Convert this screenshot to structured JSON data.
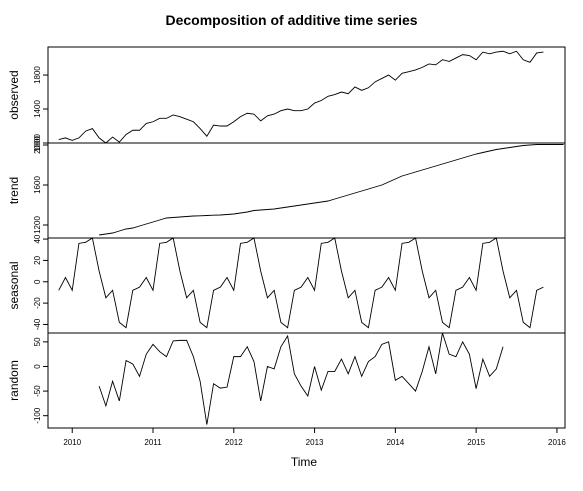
{
  "chart_data": {
    "type": "line",
    "title": "Decomposition of additive time series",
    "xlabel": "Time",
    "xlim": [
      2009.7,
      2016.1
    ],
    "x_ticks": [
      2010,
      2011,
      2012,
      2013,
      2014,
      2015,
      2016
    ],
    "x_tick_labels": [
      "2010",
      "2011",
      "2012",
      "2013",
      "2014",
      "2015",
      "2016"
    ],
    "start": 2009.833,
    "frequency": 12,
    "panels": [
      {
        "name": "observed",
        "ylabel": "observed",
        "ylim": [
          1000,
          2130
        ],
        "y_ticks": [
          1000,
          1400,
          1800
        ],
        "y_tick_labels": [
          "1000",
          "1400",
          "1800"
        ],
        "values": [
          1040,
          1060,
          1030,
          1060,
          1140,
          1170,
          1060,
          1000,
          1070,
          1010,
          1100,
          1150,
          1150,
          1230,
          1250,
          1290,
          1290,
          1330,
          1310,
          1280,
          1250,
          1170,
          1080,
          1210,
          1200,
          1200,
          1250,
          1310,
          1350,
          1340,
          1260,
          1320,
          1340,
          1380,
          1400,
          1380,
          1380,
          1400,
          1470,
          1500,
          1550,
          1570,
          1600,
          1580,
          1660,
          1620,
          1650,
          1720,
          1760,
          1800,
          1740,
          1820,
          1840,
          1860,
          1890,
          1930,
          1920,
          1980,
          1960,
          2000,
          2040,
          2030,
          1980,
          2070,
          2050,
          2070,
          2080,
          2050,
          2080,
          1980,
          1950,
          2060,
          2070
        ]
      },
      {
        "name": "trend",
        "ylabel": "trend",
        "ylim": [
          1070,
          2020
        ],
        "y_ticks": [
          1200,
          1600,
          2000
        ],
        "y_tick_labels": [
          "1200",
          "1600",
          "2000"
        ],
        "start": 2010.333,
        "values": [
          1100,
          1110,
          1120,
          1140,
          1160,
          1170,
          1190,
          1210,
          1230,
          1250,
          1270,
          1275,
          1280,
          1285,
          1290,
          1292,
          1295,
          1298,
          1300,
          1305,
          1310,
          1320,
          1330,
          1345,
          1350,
          1355,
          1360,
          1370,
          1380,
          1390,
          1400,
          1410,
          1420,
          1430,
          1440,
          1460,
          1480,
          1500,
          1520,
          1540,
          1560,
          1580,
          1600,
          1630,
          1660,
          1690,
          1710,
          1730,
          1750,
          1770,
          1790,
          1810,
          1830,
          1850,
          1870,
          1890,
          1910,
          1925,
          1940,
          1955,
          1965,
          1975,
          1985,
          1995,
          2000,
          2005,
          2005,
          2005,
          2005,
          2005
        ]
      },
      {
        "name": "seasonal",
        "ylabel": "seasonal",
        "ylim": [
          -48,
          41
        ],
        "y_ticks": [
          -40,
          -20,
          0,
          20,
          40
        ],
        "y_tick_labels": [
          "-40",
          "-20",
          "0",
          "20",
          "40"
        ],
        "values": [
          -8,
          4,
          -8,
          36,
          37,
          41,
          10,
          -15,
          -8,
          -38,
          -43,
          -8,
          -5,
          4,
          -8,
          36,
          37,
          41,
          10,
          -15,
          -8,
          -38,
          -43,
          -8,
          -5,
          4,
          -8,
          36,
          37,
          41,
          10,
          -15,
          -8,
          -38,
          -43,
          -8,
          -5,
          4,
          -8,
          36,
          37,
          41,
          10,
          -15,
          -8,
          -38,
          -43,
          -8,
          -5,
          4,
          -8,
          36,
          37,
          41,
          10,
          -15,
          -8,
          -38,
          -43,
          -8,
          -5,
          4,
          -8,
          36,
          37,
          41,
          10,
          -15,
          -8,
          -38,
          -43,
          -8,
          -5
        ]
      },
      {
        "name": "random",
        "ylabel": "random",
        "ylim": [
          -125,
          68
        ],
        "y_ticks": [
          -100,
          -50,
          0,
          50
        ],
        "y_tick_labels": [
          "-100",
          "-50",
          "0",
          "50"
        ],
        "start": 2010.333,
        "values": [
          -40,
          -80,
          -30,
          -70,
          12,
          5,
          -20,
          25,
          45,
          30,
          20,
          52,
          53,
          53,
          20,
          -30,
          -118,
          -35,
          -44,
          -42,
          20,
          20,
          40,
          10,
          -70,
          0,
          -5,
          40,
          62,
          -15,
          -40,
          -60,
          0,
          -48,
          -10,
          -10,
          15,
          -15,
          20,
          -20,
          10,
          20,
          45,
          50,
          -28,
          -20,
          -35,
          -50,
          -10,
          40,
          -15,
          68,
          25,
          20,
          50,
          25,
          -45,
          15,
          -20,
          -5,
          40
        ]
      }
    ]
  }
}
